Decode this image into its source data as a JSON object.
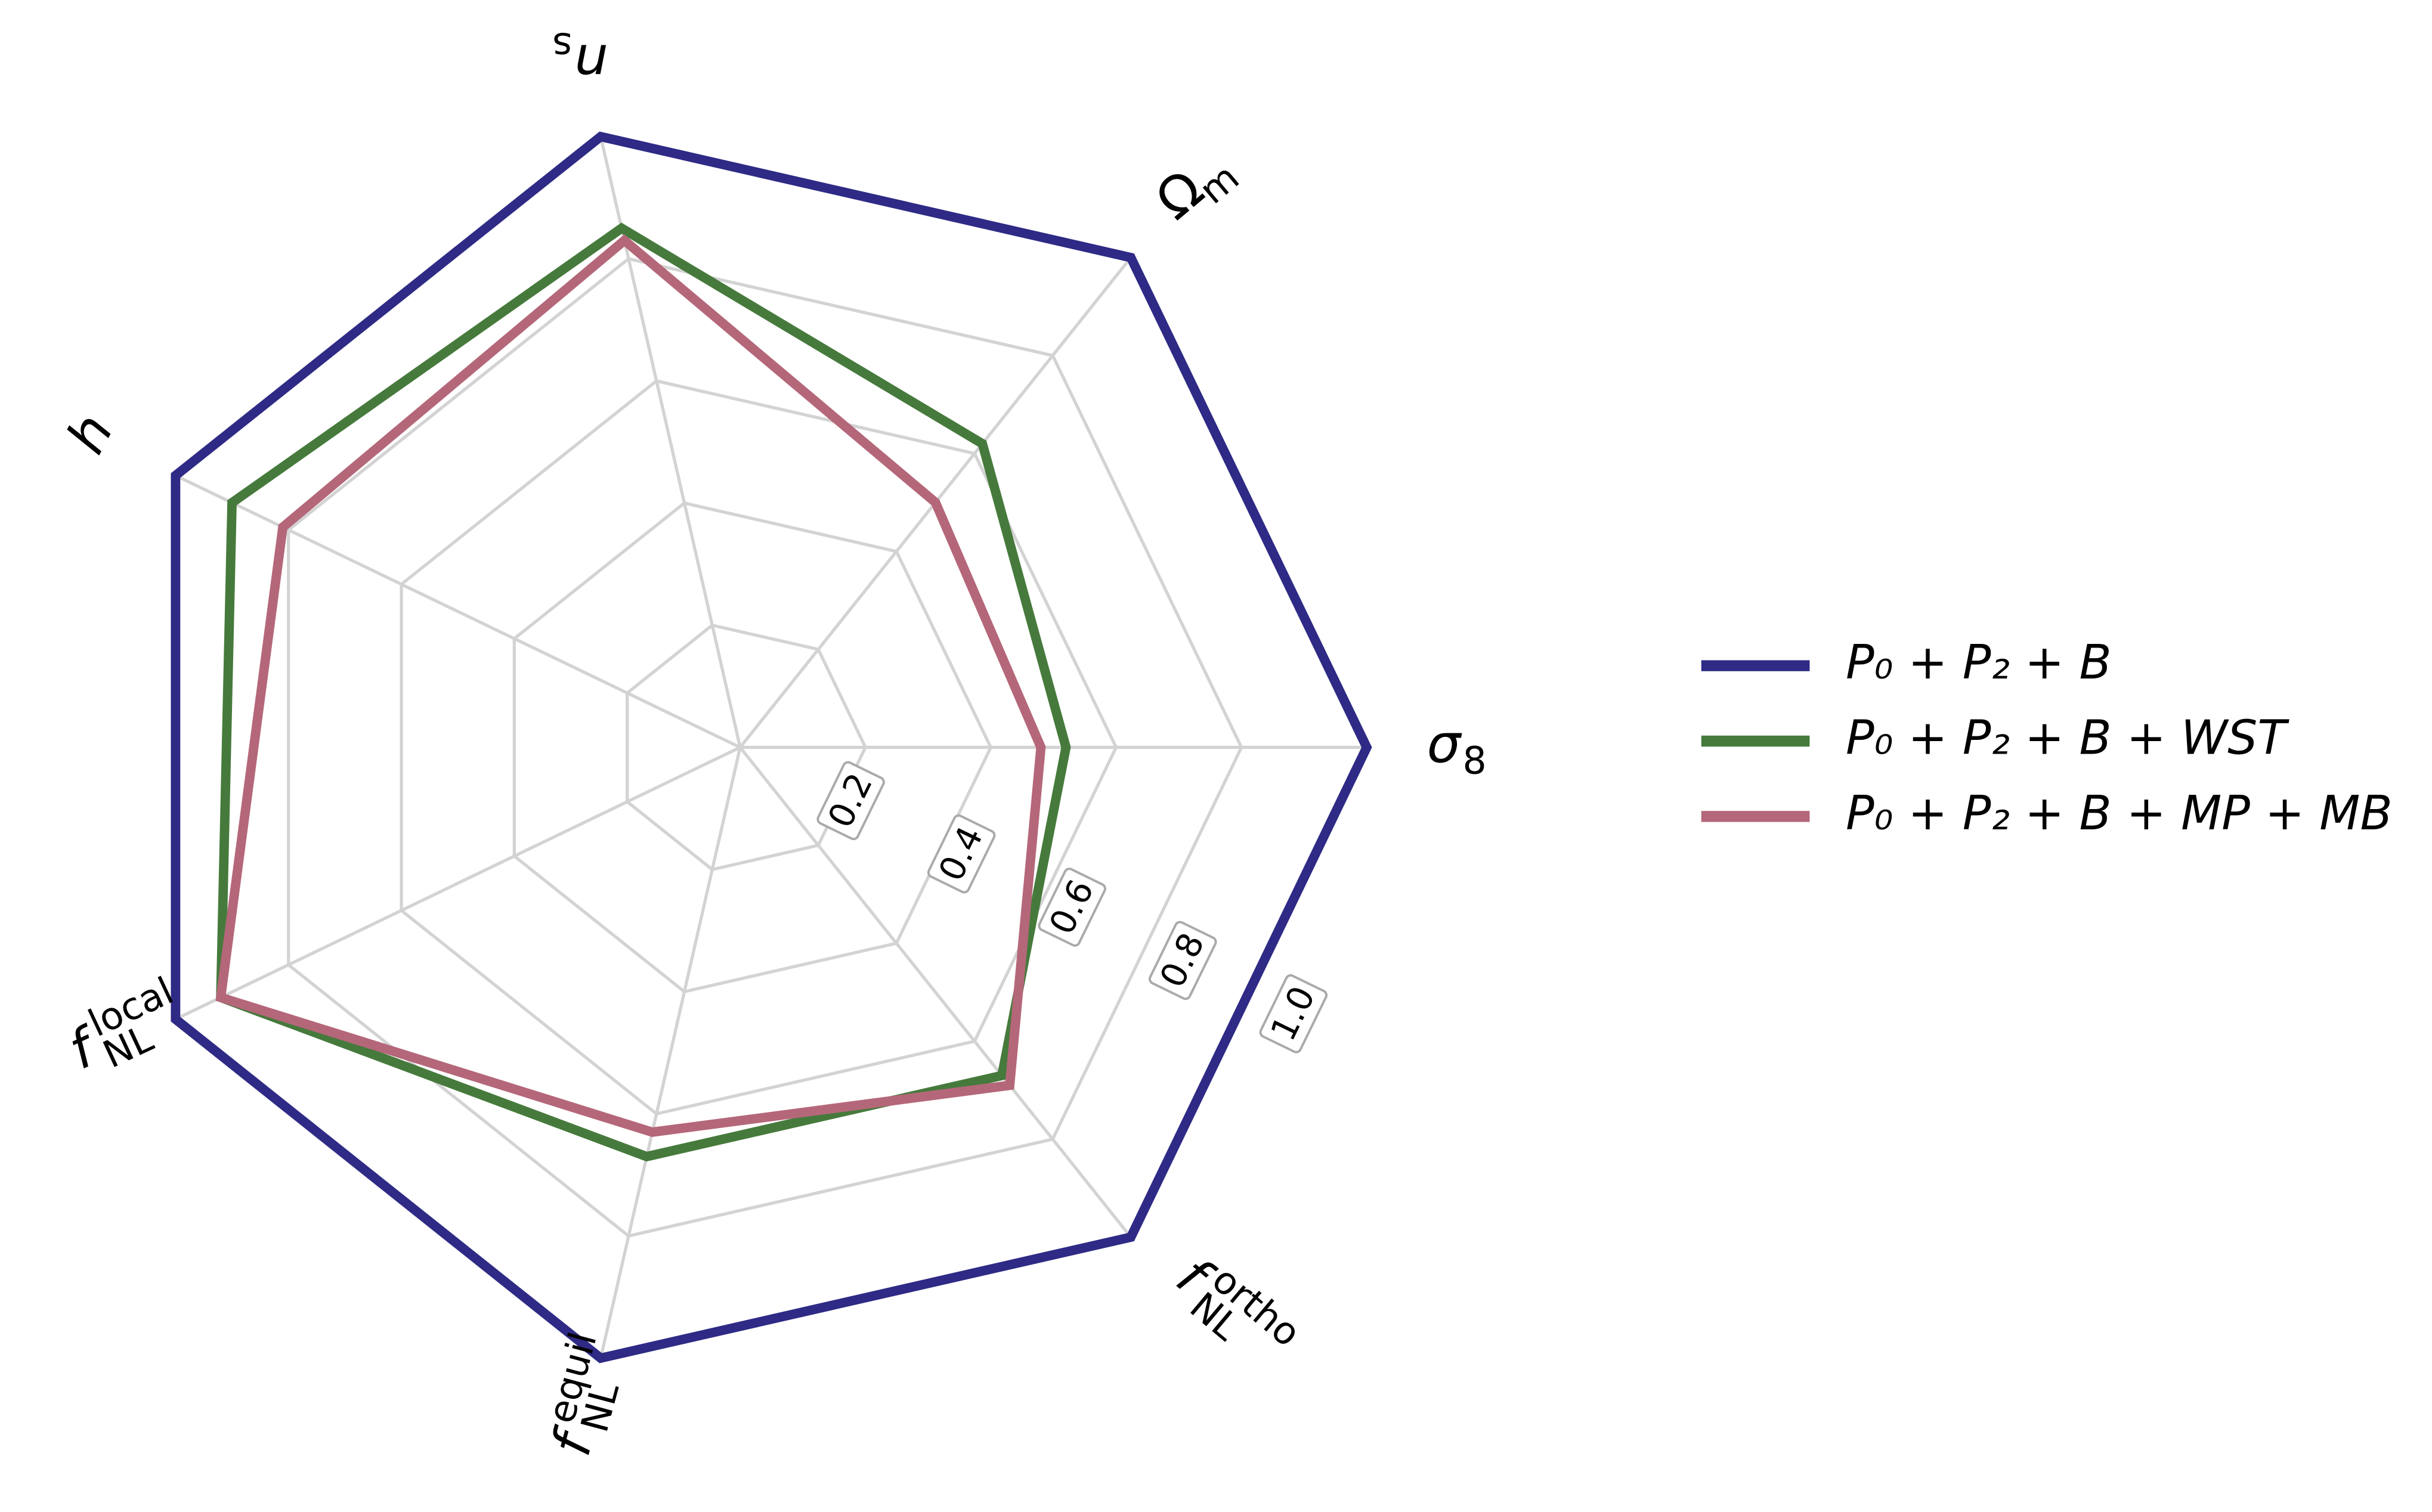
{
  "chart_data": {
    "type": "radar",
    "categories": [
      {
        "symbol": "σ",
        "sub": "8"
      },
      {
        "symbol": "Ω",
        "sub": "m"
      },
      {
        "symbol": "n",
        "sub": "s"
      },
      {
        "symbol": "h"
      },
      {
        "symbol": "f",
        "sub": "NL",
        "sup": "local"
      },
      {
        "symbol": "f",
        "sub": "NL",
        "sup": "equil"
      },
      {
        "symbol": "f",
        "sub": "NL",
        "sup": "ortho"
      }
    ],
    "series": [
      {
        "name": "P₀ + P₂ + B",
        "color": "#2e2a85",
        "values": [
          1.0,
          1.0,
          1.0,
          1.0,
          1.0,
          1.0,
          1.0
        ]
      },
      {
        "name": "P₀ + P₂ + B + WST",
        "color": "#467a3c",
        "values": [
          0.52,
          0.62,
          0.85,
          0.9,
          0.92,
          0.67,
          0.67
        ]
      },
      {
        "name": "P₀ + P₂ + B + MP + MB",
        "color": "#b5677a",
        "values": [
          0.48,
          0.5,
          0.83,
          0.81,
          0.92,
          0.63,
          0.69
        ]
      }
    ],
    "ylim": [
      0,
      1
    ],
    "yticks": [
      0.2,
      0.4,
      0.6,
      0.8,
      {
        "value": 1,
        "label": "1.0"
      }
    ],
    "grid": true
  }
}
